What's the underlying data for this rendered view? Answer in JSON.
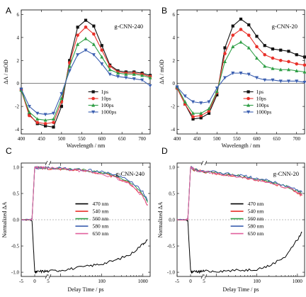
{
  "chart_data": [
    {
      "panel": "A",
      "type": "line",
      "title": "g-CNN-240",
      "xlabel": "Wavelength / nm",
      "ylabel": "ΔA / mOD",
      "xlim": [
        400,
        720
      ],
      "ylim": [
        -4.4,
        6.4
      ],
      "xticks": [
        400,
        450,
        500,
        550,
        600,
        650,
        700
      ],
      "yticks": [
        -4,
        -2,
        0,
        2,
        4,
        6
      ],
      "legend_position": "bottom-right",
      "x": [
        400,
        420,
        440,
        460,
        480,
        500,
        520,
        540,
        560,
        580,
        600,
        620,
        640,
        660,
        680,
        700,
        720
      ],
      "series": [
        {
          "name": "1ps",
          "color": "#111111",
          "marker": "square",
          "values": [
            -0.5,
            -2.7,
            -3.5,
            -3.7,
            -3.8,
            -2.0,
            2.0,
            4.9,
            5.5,
            5.0,
            3.3,
            1.6,
            1.1,
            1.0,
            1.0,
            0.9,
            0.7
          ]
        },
        {
          "name": "10ps",
          "color": "#e8312a",
          "marker": "circle",
          "values": [
            -0.6,
            -2.8,
            -3.4,
            -3.5,
            -3.4,
            -1.6,
            1.8,
            4.2,
            4.9,
            4.3,
            2.9,
            1.5,
            1.0,
            0.9,
            0.9,
            0.8,
            0.6
          ]
        },
        {
          "name": "100ps",
          "color": "#2e9e45",
          "marker": "triangle",
          "values": [
            -0.6,
            -2.5,
            -3.1,
            -3.2,
            -3.1,
            -1.3,
            1.5,
            3.4,
            3.9,
            3.4,
            2.3,
            1.2,
            0.9,
            0.8,
            0.8,
            0.7,
            0.5
          ]
        },
        {
          "name": "1000ps",
          "color": "#3b5fb0",
          "marker": "triangle-down",
          "values": [
            -0.5,
            -2.0,
            -2.6,
            -2.7,
            -2.6,
            -0.9,
            1.1,
            2.5,
            2.9,
            2.5,
            1.7,
            0.8,
            0.6,
            0.5,
            0.4,
            0.3,
            -0.2
          ]
        }
      ]
    },
    {
      "panel": "B",
      "type": "line",
      "title": "g-CNN-20",
      "xlabel": "Wavelength / nm",
      "ylabel": "ΔA / mOD",
      "xlim": [
        400,
        720
      ],
      "ylim": [
        -4.4,
        6.4
      ],
      "xticks": [
        400,
        450,
        500,
        550,
        600,
        650,
        700
      ],
      "yticks": [
        -4,
        -2,
        0,
        2,
        4,
        6
      ],
      "legend_position": "bottom-right",
      "x": [
        400,
        420,
        440,
        460,
        480,
        500,
        520,
        540,
        560,
        580,
        600,
        620,
        640,
        660,
        680,
        700,
        720
      ],
      "series": [
        {
          "name": "1ps",
          "color": "#111111",
          "marker": "square",
          "values": [
            -0.4,
            -1.8,
            -3.1,
            -3.0,
            -2.6,
            -1.0,
            3.1,
            5.0,
            5.6,
            5.1,
            4.1,
            3.3,
            3.0,
            2.9,
            2.8,
            2.5,
            2.3
          ]
        },
        {
          "name": "10ps",
          "color": "#e8312a",
          "marker": "circle",
          "values": [
            -0.4,
            -1.8,
            -2.9,
            -2.8,
            -2.4,
            -0.8,
            2.6,
            4.2,
            4.7,
            4.2,
            3.2,
            2.5,
            2.2,
            2.0,
            1.9,
            1.7,
            1.6
          ]
        },
        {
          "name": "100ps",
          "color": "#2e9e45",
          "marker": "triangle",
          "values": [
            -0.3,
            -1.6,
            -2.6,
            -2.6,
            -2.2,
            -0.7,
            1.9,
            3.2,
            3.6,
            3.1,
            2.2,
            1.5,
            1.3,
            1.2,
            1.2,
            1.1,
            1.0
          ]
        },
        {
          "name": "1000ps",
          "color": "#3b5fb0",
          "marker": "triangle-down",
          "values": [
            -0.3,
            -1.1,
            -1.6,
            -1.7,
            -1.6,
            -0.4,
            0.5,
            0.9,
            0.9,
            0.8,
            0.5,
            0.3,
            0.3,
            0.2,
            0.2,
            0.2,
            0.1
          ]
        }
      ]
    },
    {
      "panel": "C",
      "type": "line",
      "title": "g-CNN-240",
      "xlabel": "Delay Time / ps",
      "ylabel": "Normalized ΔA",
      "axis_break_at": 5,
      "xscale_before_break": "linear",
      "xscale_after_break": "log",
      "xlim": [
        -5,
        1500
      ],
      "ylim": [
        -1.08,
        1.08
      ],
      "xticks_linear": [
        -5,
        0,
        5
      ],
      "xticks_log": [
        10,
        100,
        1000
      ],
      "yticks": [
        -1.0,
        -0.5,
        0.0,
        0.5,
        1.0
      ],
      "legend_position": "center-right",
      "x": [
        -5,
        -2,
        -1,
        -0.5,
        0,
        0.3,
        1,
        3,
        5,
        10,
        20,
        50,
        100,
        200,
        500,
        1000,
        1300
      ],
      "series": [
        {
          "name": "470 nm",
          "color": "#000000",
          "values": [
            0.0,
            0.0,
            -0.02,
            -0.5,
            -0.99,
            -1.0,
            -0.99,
            -0.98,
            -0.98,
            -0.96,
            -0.93,
            -0.88,
            -0.84,
            -0.78,
            -0.66,
            -0.46,
            -0.38
          ]
        },
        {
          "name": "540 nm",
          "color": "#e8312a",
          "values": [
            0.0,
            0.0,
            0.01,
            0.5,
            1.0,
            1.0,
            0.99,
            0.99,
            0.98,
            0.97,
            0.95,
            0.92,
            0.88,
            0.82,
            0.68,
            0.45,
            0.28
          ]
        },
        {
          "name": "560 nm",
          "color": "#2e9e45",
          "values": [
            0.0,
            0.0,
            0.01,
            0.5,
            1.0,
            1.0,
            0.99,
            0.99,
            0.99,
            0.98,
            0.96,
            0.93,
            0.9,
            0.84,
            0.71,
            0.49,
            0.33
          ]
        },
        {
          "name": "580 nm",
          "color": "#3b5fb0",
          "values": [
            0.0,
            0.0,
            0.01,
            0.5,
            1.0,
            1.0,
            0.99,
            0.99,
            0.99,
            0.98,
            0.96,
            0.94,
            0.91,
            0.86,
            0.74,
            0.53,
            0.36
          ]
        },
        {
          "name": "650 nm",
          "color": "#e0609e",
          "values": [
            0.0,
            0.0,
            0.01,
            0.5,
            1.0,
            1.0,
            0.99,
            0.99,
            0.98,
            0.97,
            0.95,
            0.91,
            0.87,
            0.81,
            0.67,
            0.44,
            0.27
          ]
        }
      ]
    },
    {
      "panel": "D",
      "type": "line",
      "title": "g-CNN-20",
      "xlabel": "Delay Time / ps",
      "ylabel": "Normalized ΔA",
      "axis_break_at": 5,
      "xscale_before_break": "linear",
      "xscale_after_break": "log",
      "xlim": [
        -5,
        1500
      ],
      "ylim": [
        -1.08,
        1.08
      ],
      "xticks_linear": [
        -5,
        0,
        5
      ],
      "xticks_log": [
        10,
        100,
        1000
      ],
      "yticks": [
        -1.0,
        -0.5,
        0.0,
        0.5,
        1.0
      ],
      "legend_position": "center-right",
      "x": [
        -5,
        -2,
        -1,
        -0.5,
        0,
        0.3,
        1,
        3,
        5,
        10,
        20,
        50,
        100,
        200,
        500,
        1000,
        1300
      ],
      "series": [
        {
          "name": "470 nm",
          "color": "#000000",
          "values": [
            0.0,
            0.0,
            -0.02,
            -0.5,
            -0.95,
            -1.0,
            -0.99,
            -0.99,
            -0.98,
            -0.98,
            -0.97,
            -0.96,
            -0.94,
            -0.88,
            -0.7,
            -0.38,
            -0.24
          ]
        },
        {
          "name": "540 nm",
          "color": "#e8312a",
          "values": [
            0.0,
            0.0,
            0.01,
            0.5,
            1.0,
            1.0,
            0.96,
            0.93,
            0.91,
            0.88,
            0.85,
            0.8,
            0.76,
            0.71,
            0.62,
            0.52,
            0.46
          ]
        },
        {
          "name": "560 nm",
          "color": "#2e9e45",
          "values": [
            0.0,
            0.0,
            0.01,
            0.5,
            1.0,
            1.0,
            0.96,
            0.93,
            0.92,
            0.89,
            0.86,
            0.82,
            0.78,
            0.73,
            0.65,
            0.55,
            0.5
          ]
        },
        {
          "name": "580 nm",
          "color": "#3b5fb0",
          "values": [
            0.0,
            0.0,
            0.01,
            0.5,
            1.0,
            1.0,
            0.97,
            0.94,
            0.93,
            0.9,
            0.87,
            0.83,
            0.79,
            0.74,
            0.66,
            0.57,
            0.52
          ]
        },
        {
          "name": "650 nm",
          "color": "#e0609e",
          "values": [
            0.0,
            0.0,
            0.01,
            0.5,
            1.0,
            1.0,
            0.96,
            0.93,
            0.91,
            0.88,
            0.85,
            0.8,
            0.76,
            0.71,
            0.63,
            0.53,
            0.48
          ]
        }
      ]
    }
  ]
}
